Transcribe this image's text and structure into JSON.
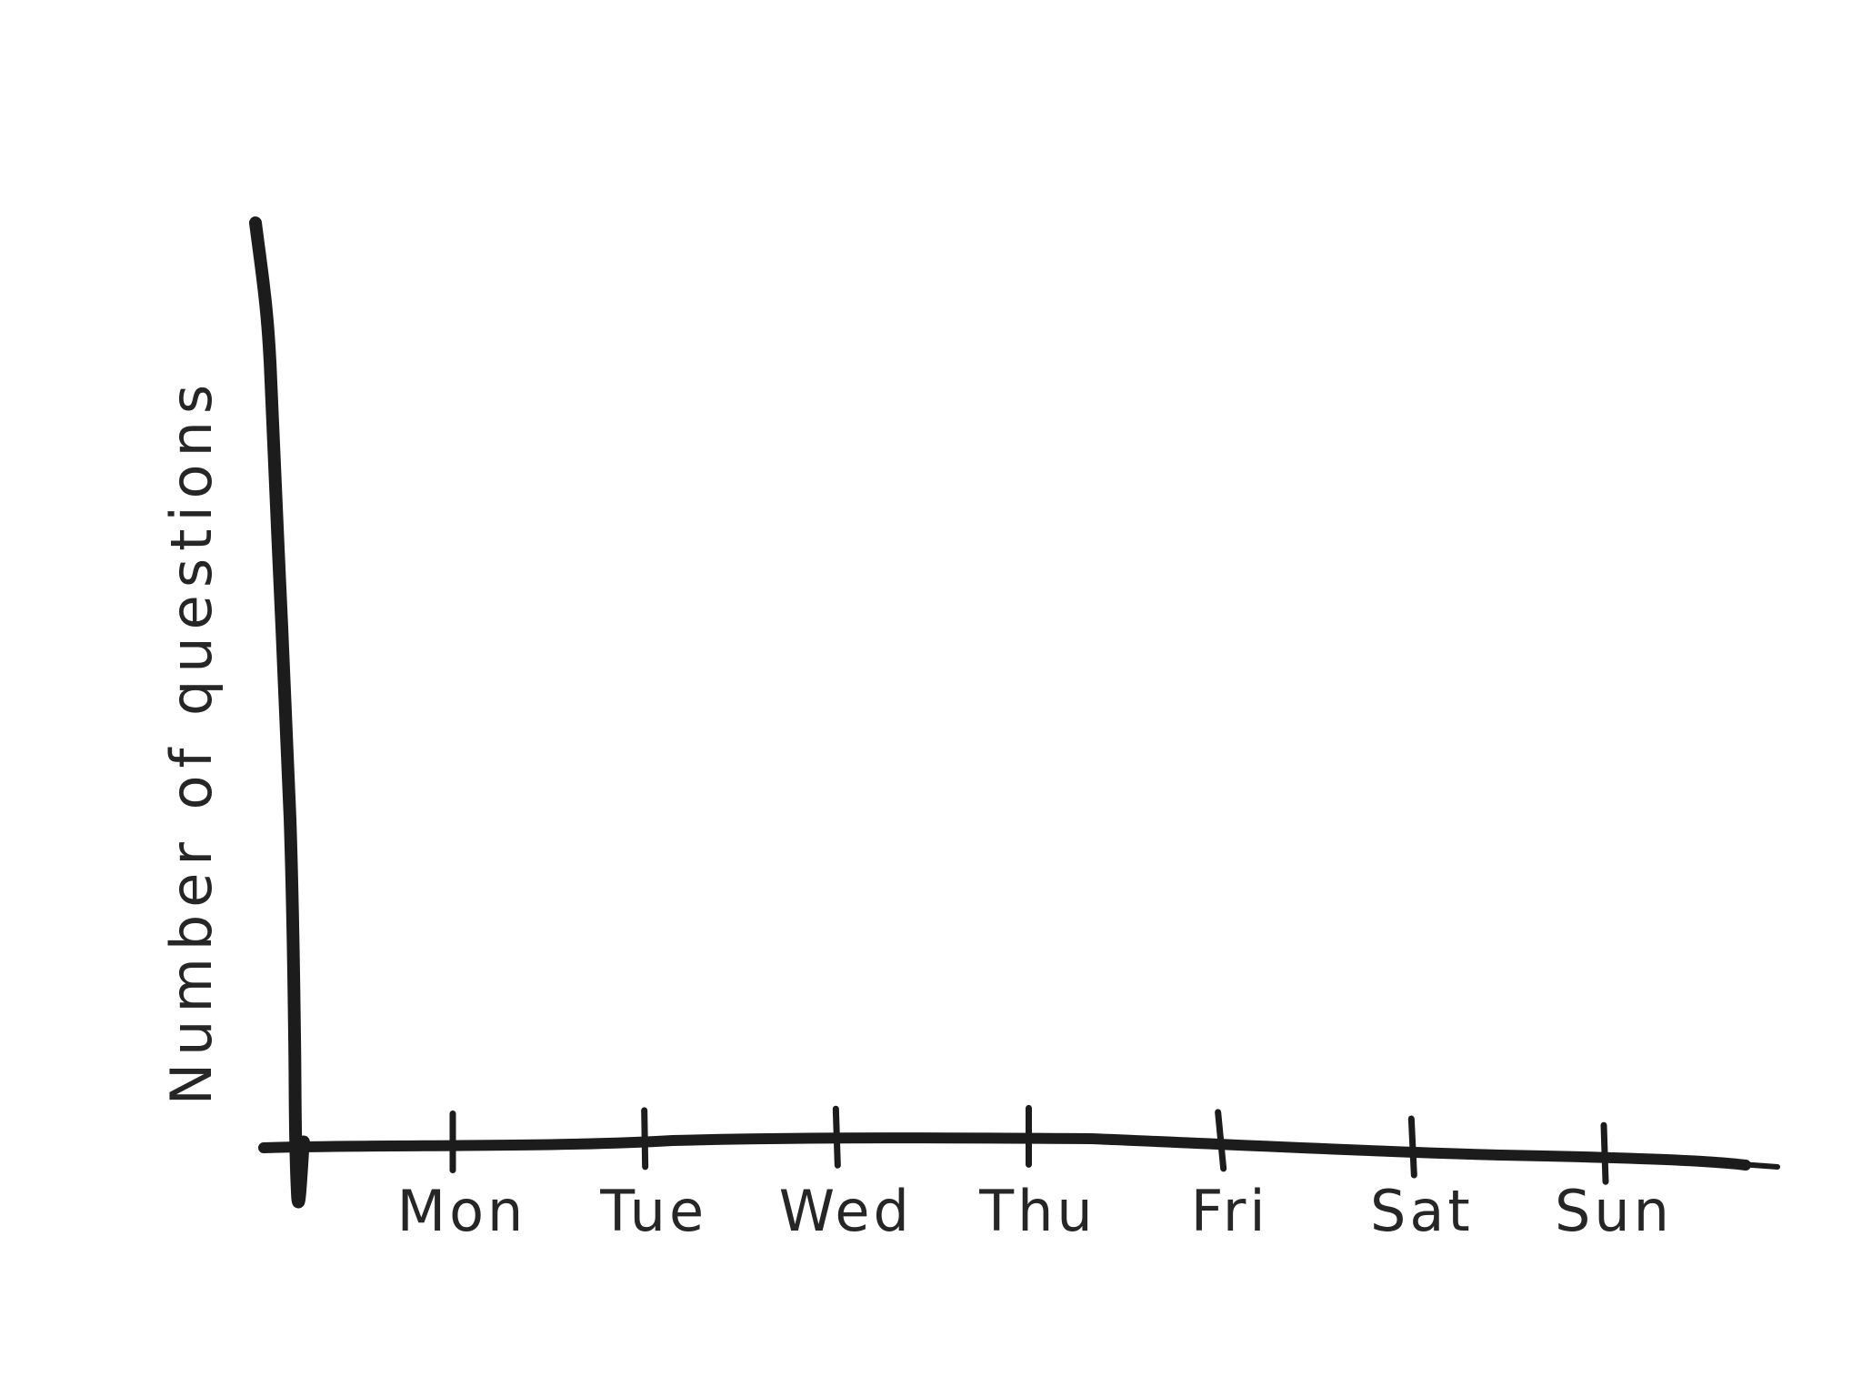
{
  "chart_data": {
    "type": "line",
    "title": "",
    "xlabel": "",
    "ylabel": "Number of questions",
    "categories": [
      "Mon",
      "Tue",
      "Wed",
      "Thu",
      "Fri",
      "Sat",
      "Sun"
    ],
    "series": [],
    "grid": false,
    "legend": "none",
    "style": "hand-drawn",
    "colors": {
      "ink": "#1c1c1c",
      "text": "#262626",
      "background": "#ffffff"
    }
  }
}
